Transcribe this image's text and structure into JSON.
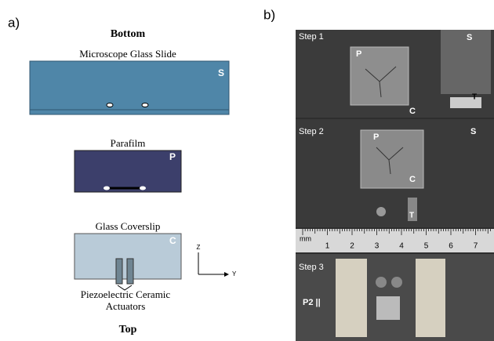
{
  "panel_a": {
    "label": "a)",
    "bottom": "Bottom",
    "top": "Top",
    "slide": {
      "title": "Microscope Glass Slide",
      "tag": "S"
    },
    "parafilm": {
      "title": "Parafilm",
      "tag": "P"
    },
    "coverslip": {
      "title": "Glass Coverslip",
      "tag": "C"
    },
    "axes": {
      "z": "Z",
      "y": "Y"
    },
    "actuators": [
      "Piezoelectric Ceramic",
      "Actuators"
    ]
  },
  "panel_b": {
    "label": "b)",
    "step1": {
      "title": "Step 1",
      "labels": [
        "P",
        "S",
        "C",
        "T"
      ]
    },
    "step2": {
      "title": "Step 2",
      "labels": [
        "P",
        "S",
        "C",
        "T"
      ]
    },
    "ruler": {
      "unit": "mm",
      "numbers": [
        "1",
        "2",
        "3",
        "4",
        "5",
        "6",
        "7"
      ]
    },
    "step3": {
      "title": "Step 3",
      "labels": [
        "P2 ||"
      ]
    }
  }
}
